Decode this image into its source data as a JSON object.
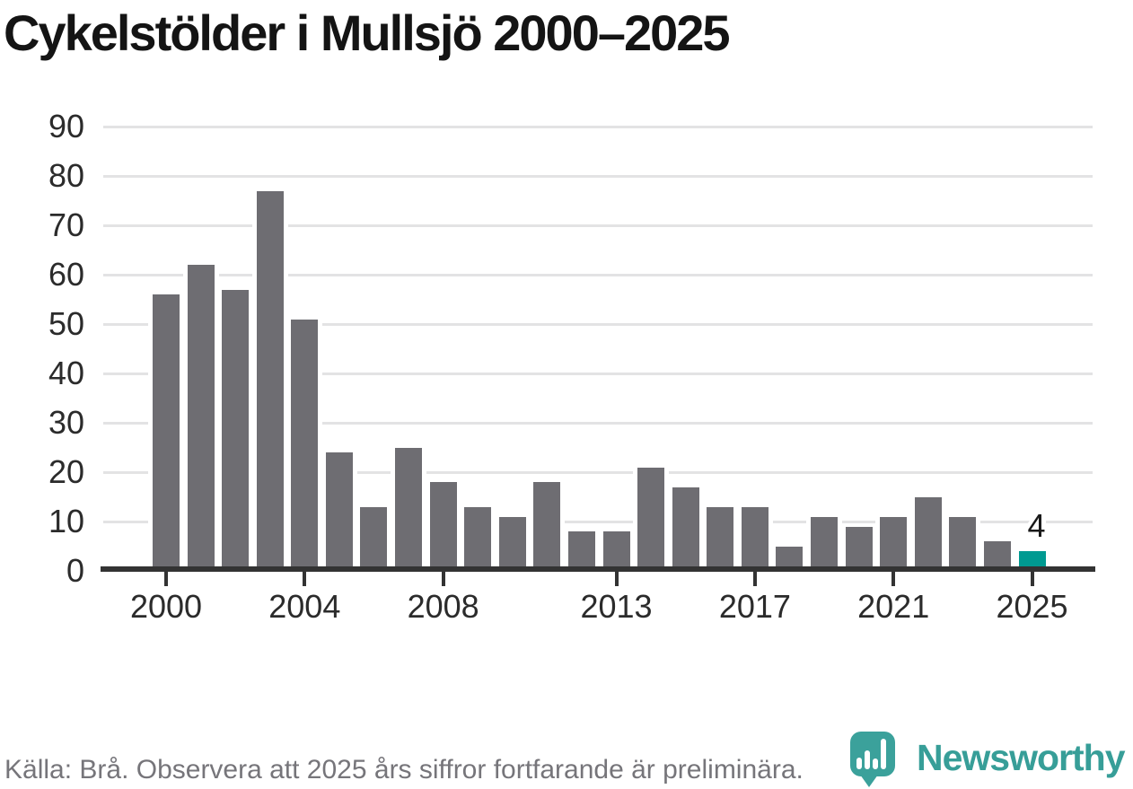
{
  "title": "Cykelstölder i Mullsjö 2000–2025",
  "footer": {
    "source_note": "Källa: Brå. Observera att 2025 års siffror fortfarande är preliminära."
  },
  "logo": {
    "wordmark": "Newsworthy",
    "icon": "newsworthy-pin-bar-chart-icon",
    "icon_color": "#3ba19b",
    "wordmark_color": "#379e98"
  },
  "colors": {
    "bar": "#6e6d72",
    "highlight": "#009a91",
    "axis": "#333333",
    "gridline": "#e3e3e4",
    "tick_label": "#2b2b2b",
    "title_text": "#141414",
    "source_text": "#76757a",
    "background": "#ffffff"
  },
  "chart_data": {
    "type": "bar",
    "title": "Cykelstölder i Mullsjö 2000–2025",
    "xlabel": "",
    "ylabel": "",
    "categories": [
      "2000",
      "2001",
      "2002",
      "2003",
      "2004",
      "2005",
      "2006",
      "2007",
      "2008",
      "2009",
      "2010",
      "2011",
      "2012",
      "2013",
      "2014",
      "2015",
      "2016",
      "2017",
      "2018",
      "2019",
      "2020",
      "2021",
      "2022",
      "2023",
      "2024",
      "2025"
    ],
    "values": [
      56,
      62,
      57,
      77,
      51,
      24,
      13,
      25,
      18,
      13,
      11,
      18,
      8,
      8,
      21,
      17,
      13,
      13,
      5,
      11,
      9,
      11,
      15,
      11,
      6,
      4
    ],
    "highlight": {
      "category": "2025",
      "value": 4,
      "label": "4"
    },
    "data_labels": [
      {
        "category": "2025",
        "text": "4"
      }
    ],
    "xticks": [
      "2000",
      "2004",
      "2008",
      "2013",
      "2017",
      "2021",
      "2025"
    ],
    "yticks": [
      0,
      10,
      20,
      30,
      40,
      50,
      60,
      70,
      80,
      90
    ],
    "ylim": [
      0,
      90
    ],
    "grid": "horizontal",
    "legend": "none"
  }
}
